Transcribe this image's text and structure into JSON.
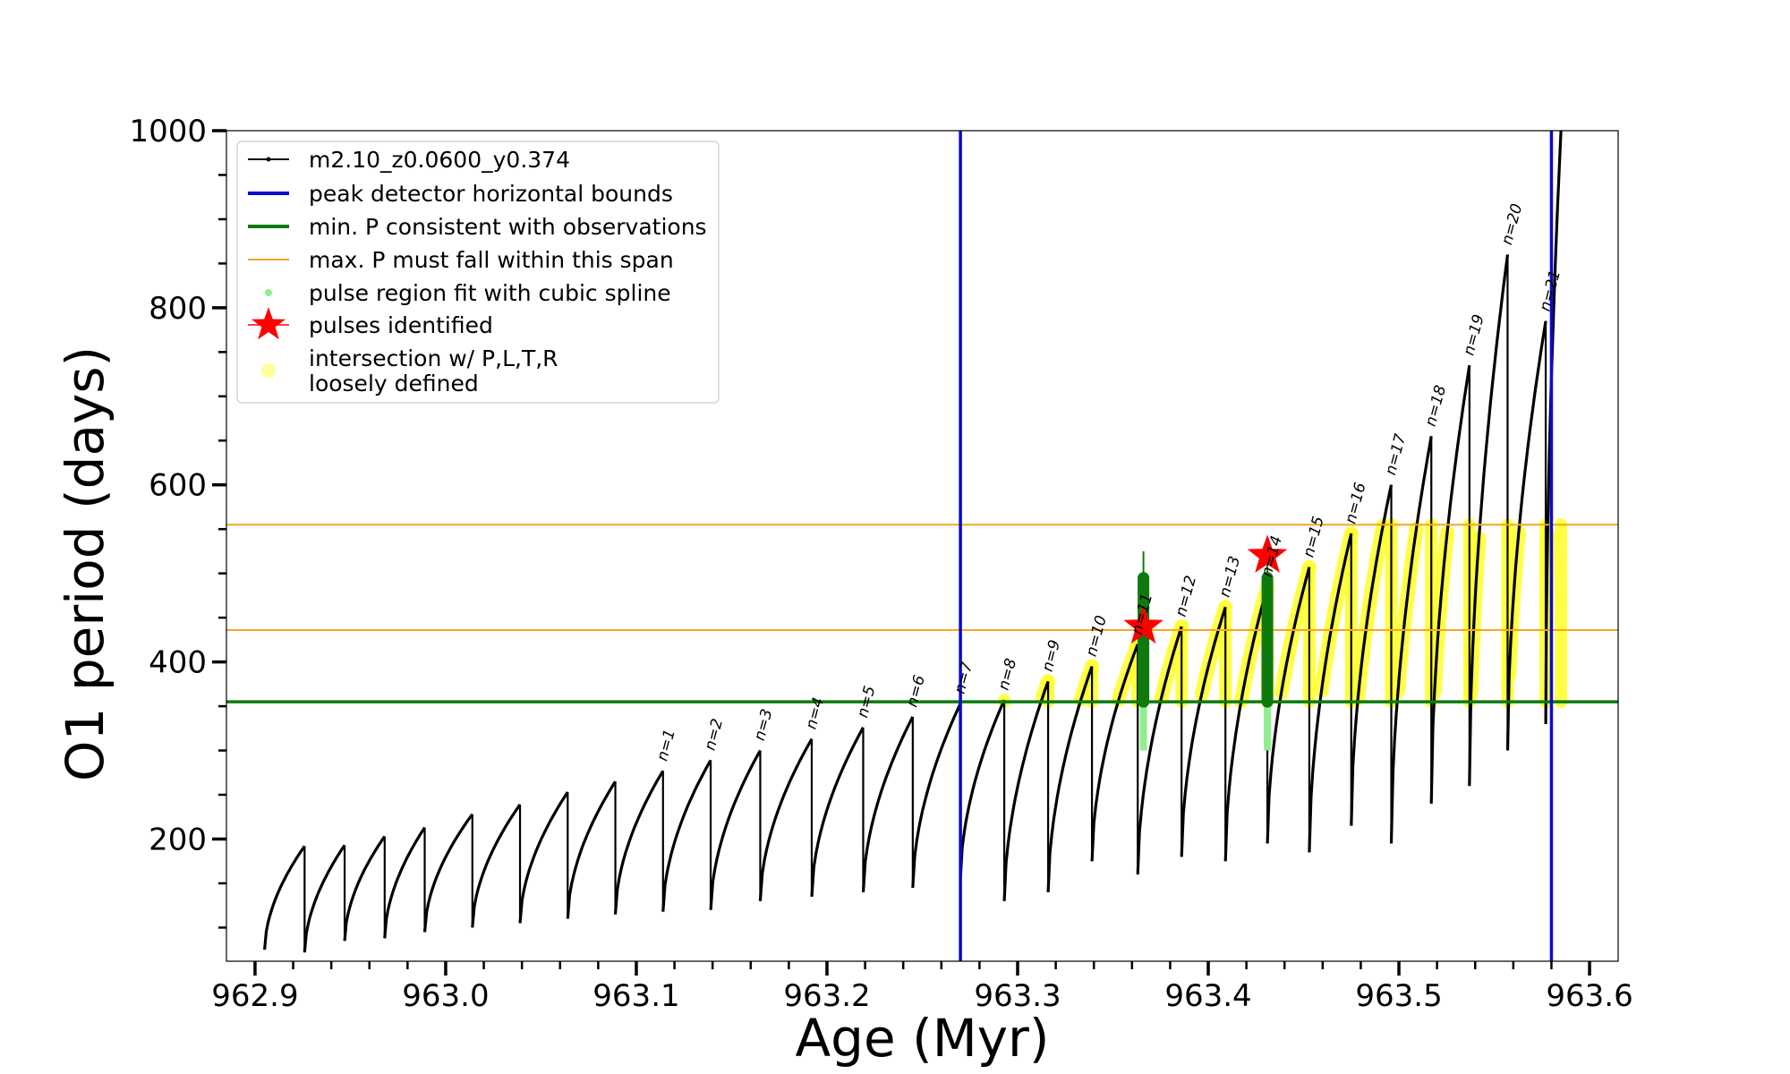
{
  "chart_data": {
    "type": "line",
    "title": "",
    "xlabel": "Age (Myr)",
    "ylabel": "O1 period (days)",
    "xlim": [
      962.885,
      963.615
    ],
    "ylim": [
      62,
      1000
    ],
    "xticks": [
      962.9,
      963.0,
      963.1,
      963.2,
      963.3,
      963.4,
      963.5,
      963.6
    ],
    "xtick_labels": [
      "962.9",
      "963.0",
      "963.1",
      "963.2",
      "963.3",
      "963.4",
      "963.5",
      "963.6"
    ],
    "yticks": [
      200,
      400,
      600,
      800,
      1000
    ],
    "ytick_labels": [
      "200",
      "400",
      "600",
      "800",
      "1000"
    ],
    "grid": false,
    "legend_position": "top-left",
    "colors": {
      "track": "#000000",
      "bounds": "#0a0ad2",
      "min_p": "#0e7a0e",
      "max_p_span": "#f5a623",
      "spline": "#90ee90",
      "pulse": "#ff0000",
      "intersection": "#ffff33"
    },
    "legend": [
      {
        "key": "track",
        "label": "m2.10_z0.0600_y0.374"
      },
      {
        "key": "bounds",
        "label": "peak detector horizontal bounds"
      },
      {
        "key": "min_p",
        "label": "min. P consistent with observations"
      },
      {
        "key": "max_p_span",
        "label": "max. P must fall within this span"
      },
      {
        "key": "spline",
        "label": "pulse region fit with cubic spline"
      },
      {
        "key": "pulse",
        "label": "pulses identified"
      },
      {
        "key": "intersection",
        "label": "intersection w/ P,L,T,R",
        "label2": "loosely defined"
      }
    ],
    "vertical_bounds_x": [
      963.27,
      963.58
    ],
    "min_p_line": 355,
    "max_p_span": [
      436,
      555
    ],
    "pulse_cycles": [
      {
        "start": 962.905,
        "end": 962.926,
        "min": 75,
        "peak": 192,
        "label": ""
      },
      {
        "start": 962.926,
        "end": 962.947,
        "min": 72,
        "peak": 193,
        "label": ""
      },
      {
        "start": 962.947,
        "end": 962.968,
        "min": 85,
        "peak": 203,
        "label": ""
      },
      {
        "start": 962.968,
        "end": 962.989,
        "min": 88,
        "peak": 213,
        "label": ""
      },
      {
        "start": 962.989,
        "end": 963.014,
        "min": 95,
        "peak": 228,
        "label": ""
      },
      {
        "start": 963.014,
        "end": 963.039,
        "min": 100,
        "peak": 239,
        "label": ""
      },
      {
        "start": 963.039,
        "end": 963.064,
        "min": 105,
        "peak": 253,
        "label": ""
      },
      {
        "start": 963.064,
        "end": 963.089,
        "min": 110,
        "peak": 265,
        "label": ""
      },
      {
        "start": 963.089,
        "end": 963.114,
        "min": 115,
        "peak": 277,
        "label": "n=1"
      },
      {
        "start": 963.114,
        "end": 963.139,
        "min": 118,
        "peak": 289,
        "label": "n=2"
      },
      {
        "start": 963.139,
        "end": 963.165,
        "min": 120,
        "peak": 300,
        "label": "n=3"
      },
      {
        "start": 963.165,
        "end": 963.192,
        "min": 130,
        "peak": 313,
        "label": "n=4"
      },
      {
        "start": 963.192,
        "end": 963.219,
        "min": 135,
        "peak": 326,
        "label": "n=5"
      },
      {
        "start": 963.219,
        "end": 963.245,
        "min": 140,
        "peak": 338,
        "label": "n=6"
      },
      {
        "start": 963.245,
        "end": 963.27,
        "min": 145,
        "peak": 353,
        "label": "n=7"
      },
      {
        "start": 963.27,
        "end": 963.293,
        "min": 155,
        "peak": 357,
        "label": "n=8"
      },
      {
        "start": 963.293,
        "end": 963.316,
        "min": 130,
        "peak": 378,
        "label": "n=9"
      },
      {
        "start": 963.316,
        "end": 963.339,
        "min": 140,
        "peak": 395,
        "label": "n=10"
      },
      {
        "start": 963.339,
        "end": 963.363,
        "min": 175,
        "peak": 420,
        "label": "n=11"
      },
      {
        "start": 963.363,
        "end": 963.386,
        "min": 160,
        "peak": 440,
        "label": "n=12"
      },
      {
        "start": 963.386,
        "end": 963.409,
        "min": 180,
        "peak": 462,
        "label": "n=13"
      },
      {
        "start": 963.409,
        "end": 963.431,
        "min": 175,
        "peak": 485,
        "label": "n=14"
      },
      {
        "start": 963.431,
        "end": 963.453,
        "min": 195,
        "peak": 507,
        "label": "n=15"
      },
      {
        "start": 963.453,
        "end": 963.475,
        "min": 185,
        "peak": 545,
        "label": "n=16"
      },
      {
        "start": 963.475,
        "end": 963.496,
        "min": 215,
        "peak": 600,
        "label": "n=17"
      },
      {
        "start": 963.496,
        "end": 963.517,
        "min": 195,
        "peak": 655,
        "label": "n=18"
      },
      {
        "start": 963.517,
        "end": 963.537,
        "min": 240,
        "peak": 735,
        "label": "n=19"
      },
      {
        "start": 963.537,
        "end": 963.557,
        "min": 260,
        "peak": 860,
        "label": "n=20"
      },
      {
        "start": 963.557,
        "end": 963.577,
        "min": 300,
        "peak": 785,
        "label": "n=21"
      },
      {
        "start": 963.577,
        "end": 963.585,
        "min": 330,
        "peak": 1000,
        "label": ""
      }
    ],
    "pulses_identified": [
      {
        "x": 963.366,
        "y": 440
      },
      {
        "x": 963.431,
        "y": 520
      }
    ],
    "spline_fit_ages": [
      963.366,
      963.431
    ],
    "green_fit_range": [
      355,
      495
    ],
    "spline_extent": [
      300,
      525
    ]
  }
}
